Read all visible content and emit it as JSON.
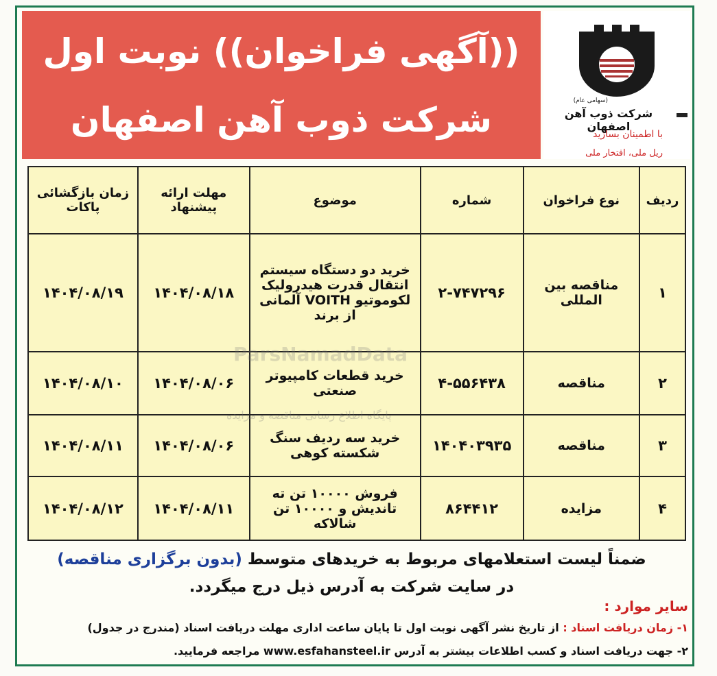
{
  "header": {
    "title_line1": "((آگهی فراخوان)) نوبت اول",
    "title_line2": "شرکت ذوب آهن اصفهان"
  },
  "logo": {
    "type": "(سهامی عام)",
    "company": "شرکت ذوب آهن اصفهان",
    "slogan": "با اطمینان بسازید",
    "motto": "ریل ملی، افتخار ملی"
  },
  "table": {
    "headers": [
      "ردیف",
      "نوع فراخوان",
      "شماره",
      "موضوع",
      "مهلت ارائه پیشنهاد",
      "زمان بازگشائی پاکات"
    ],
    "rows": [
      [
        "۱",
        "مناقصه بین المللی",
        "۲-۷۴۷۲۹۶",
        "خرید دو دستگاه سیستم انتقال قدرت هیدرولیک لکوموتیو VOITH آلمانی از برند",
        "۱۴۰۴/۰۸/۱۸",
        "۱۴۰۴/۰۸/۱۹"
      ],
      [
        "۲",
        "مناقصه",
        "۴-۵۵۶۴۳۸",
        "خرید قطعات کامپیوتر صنعتی",
        "۱۴۰۴/۰۸/۰۶",
        "۱۴۰۴/۰۸/۱۰"
      ],
      [
        "۳",
        "مناقصه",
        "۱۴۰۴۰۳۹۳۵",
        "خرید سه ردیف سنگ شکسته کوهی",
        "۱۴۰۴/۰۸/۰۶",
        "۱۴۰۴/۰۸/۱۱"
      ],
      [
        "۴",
        "مزایده",
        "۸۶۴۴۱۲",
        "فروش ۱۰۰۰۰ تن ته تاندیش و ۱۰۰۰۰ تن شالاکه",
        "۱۴۰۴/۰۸/۱۱",
        "۱۴۰۴/۰۸/۱۲"
      ]
    ]
  },
  "watermark": {
    "brand": "ParsNamadData",
    "caption": "پایگاه اطلاع رسانی مناقصه و مزایده"
  },
  "note": {
    "text": "ضمناً لیست استعلامهای مربوط به خریدهای متوسط",
    "highlight": "(بدون برگزاری مناقصه)",
    "text2": "در سایت شرکت به آدرس ذیل درج میگردد."
  },
  "other": {
    "heading": "سایر موارد :",
    "items": [
      {
        "label": "۱- زمان دریافت اسناد :",
        "text": "از تاریخ نشر آگهی نوبت اول تا پایان ساعت اداری مهلت دریافت اسناد (مندرج در جدول)"
      },
      {
        "label": "۲-",
        "text": "جهت دریافت اسناد و کسب اطلاعات بیشتر به آدرس www.esfahansteel.ir مراجعه فرمایید."
      }
    ]
  }
}
